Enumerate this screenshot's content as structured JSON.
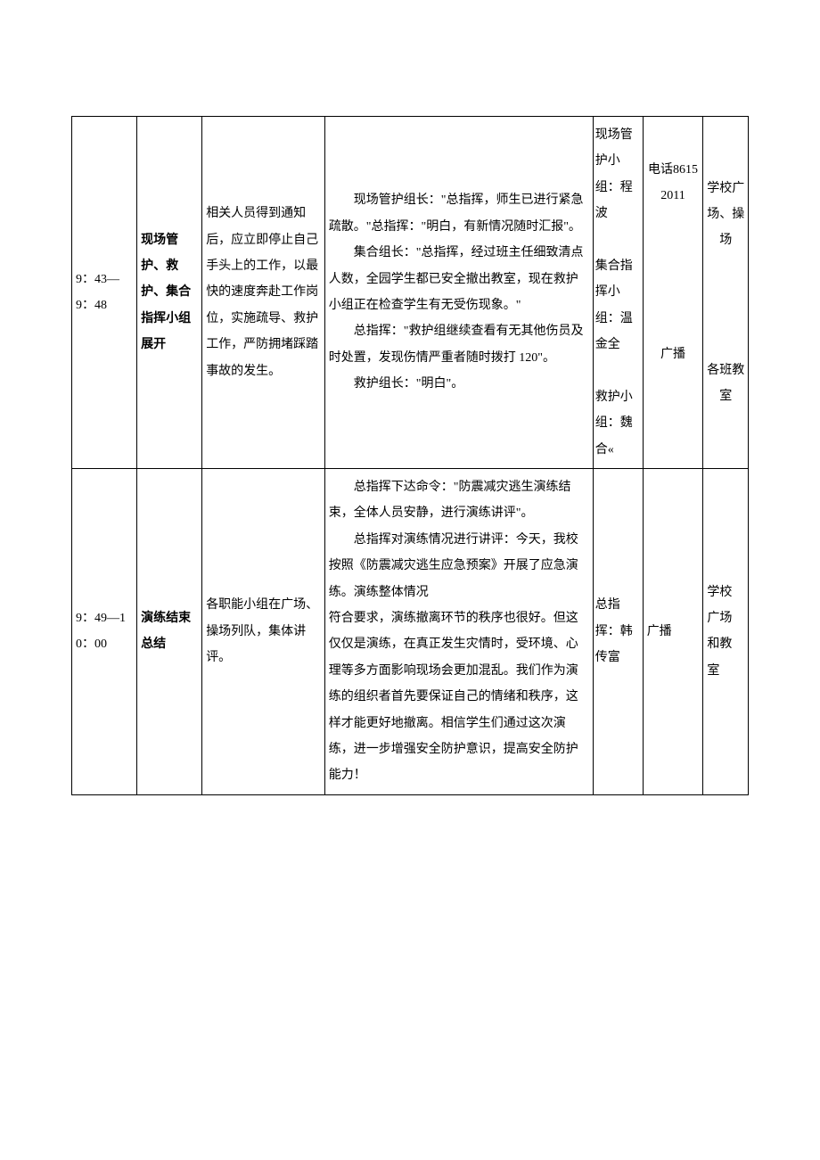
{
  "table": {
    "rows": [
      {
        "time": "9：43—9：48",
        "phase": "现场管护、救护、集合指挥小组展开",
        "action": "相关人员得到通知后，应立即停止自己手头上的工作，以最快的速度奔赴工作岗位，实施疏导、救护工作，严防拥堵踩踏事故的发生。",
        "dialog_p1": "现场管护组长：\"总指挥，师生已进行紧急疏散。\"总指挥：\"明白，有新情况随时汇报\"。",
        "dialog_p2": "集合组长：\"总指挥，经过班主任细致清点人数，全园学生都已安全撤出教室，现在救护小组正在检查学生有无受伤现象。\"",
        "dialog_p3": "总指挥：\"救护组继续查看有无其他伤员及时处置，发现伤情严重者随时拨打 120\"。",
        "dialog_p4": "救护组长：\"明白\"。",
        "person": "现场管护小组：程波\n\n集合指挥小组：温金全\n\n救护小组：魏合«",
        "comm1": "电话86152011",
        "comm2": "广播",
        "place1": "学校广场、操场",
        "place2": "各班教室"
      },
      {
        "time": "9：49—10：00",
        "phase": "演练结束总结",
        "action": "各职能小组在广场、操场列队，集体讲评。",
        "dialog_p1": "总指挥下达命令：\"防震减灾逃生演练结束，全体人员安静，进行演练讲评\"。",
        "dialog_p2": "总指挥对演练情况进行讲评：今天，我校按照《防震减灾逃生应急预案》开展了应急演练。演练整体情况",
        "dialog_p3": "符合要求，演练撤离环节的秩序也很好。但这仅仅是演练，在真正发生灾情时，受环境、心理等多方面影响现场会更加混乱。我们作为演练的组织者首先要保证自己的情绪和秩序，这样才能更好地撤离。相信学生们通过这次演练，进一步增强安全防护意识，提高安全防护能力！",
        "person": "总指挥：韩传富",
        "comm": "广播",
        "place": "学校广场和教室"
      }
    ]
  }
}
